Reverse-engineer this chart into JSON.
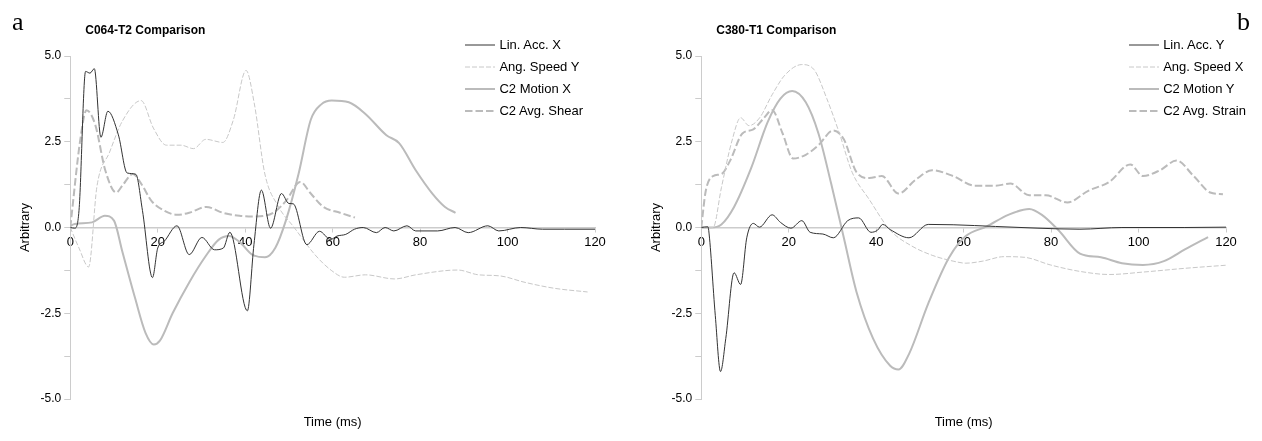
{
  "chart_data": [
    {
      "type": "line",
      "title": "C064-T2 Comparison",
      "xlabel": "Time (ms)",
      "ylabel": "Arbitrary",
      "annotations": [
        "a"
      ],
      "xlim": [
        0,
        120
      ],
      "xticks": [
        0,
        20,
        40,
        60,
        80,
        100,
        120
      ],
      "ylim": [
        -5,
        5
      ],
      "yticks": [
        {
          "value": -5,
          "label": "-5.0"
        },
        {
          "value": -3.75,
          "label": null
        },
        {
          "value": -2.5,
          "label": "-2.5"
        },
        {
          "value": -1.25,
          "label": null
        },
        {
          "value": 0,
          "label": "0.0"
        },
        {
          "value": 1.25,
          "label": null
        },
        {
          "value": 2.5,
          "label": "2.5"
        },
        {
          "value": 3.75,
          "label": null
        },
        {
          "value": 5,
          "label": "5.0"
        }
      ],
      "grid": false,
      "legend": "top right",
      "marker": "none",
      "series": [
        {
          "name": "Lin. Acc. X",
          "color": "#333333",
          "line_style": "solid",
          "x": [
            0,
            1,
            2,
            3.5,
            4.5,
            5.5,
            7,
            8.6,
            11,
            13,
            15,
            16.5,
            18.8,
            20,
            21.5,
            24.4,
            27.2,
            30.1,
            33,
            35,
            36.5,
            40.5,
            42,
            43.7,
            45.8,
            48.3,
            50,
            51,
            54.1,
            57,
            59.5,
            61,
            63,
            65,
            67,
            70,
            72,
            74,
            77,
            79,
            84,
            88,
            91,
            95.5,
            98,
            103,
            108,
            113,
            120
          ],
          "values": [
            0,
            -0.02,
            0.5,
            4.55,
            4.5,
            4.63,
            2.63,
            3.39,
            2.7,
            1.59,
            1.55,
            0.5,
            -1.46,
            -0.6,
            -0.4,
            0.05,
            -0.79,
            -0.29,
            -0.65,
            -0.6,
            -0.14,
            -2.43,
            -0.5,
            1.09,
            -0.02,
            0.99,
            0.7,
            0.69,
            -0.5,
            -0.11,
            -0.35,
            -0.25,
            -0.2,
            -0.05,
            0,
            -0.15,
            0,
            -0.1,
            0.05,
            -0.1,
            -0.1,
            0,
            -0.15,
            0.05,
            -0.1,
            0,
            -0.05,
            -0.05,
            -0.05
          ]
        },
        {
          "name": "Ang. Speed Y",
          "color": "#c8c8c8",
          "line_style": "dashed",
          "x": [
            0,
            2,
            4.2,
            6.1,
            9,
            11.9,
            16.2,
            19,
            22,
            25.3,
            28.2,
            31,
            34.9,
            37.3,
            40.2,
            42.1,
            44.5,
            47.4,
            51.2,
            56,
            59.8,
            62.7,
            67.5,
            74.2,
            79,
            88.6,
            93.4,
            98.2,
            104,
            110.6,
            118.3
          ],
          "values": [
            0,
            -0.6,
            -1.15,
            1.2,
            2.2,
            3.1,
            3.7,
            2.9,
            2.4,
            2.4,
            2.3,
            2.57,
            2.48,
            3.14,
            4.58,
            3.6,
            1.56,
            0.65,
            0,
            -0.8,
            -1.26,
            -1.45,
            -1.38,
            -1.5,
            -1.38,
            -1.24,
            -1.38,
            -1.41,
            -1.6,
            -1.77,
            -1.88
          ]
        },
        {
          "name": "C2 Motion X",
          "color": "#bbbbbb",
          "line_style": "solid",
          "x": [
            0,
            1,
            5,
            7.9,
            10,
            11.9,
            14.8,
            17.2,
            19.1,
            20.5,
            23.4,
            27.2,
            31.1,
            33.9,
            36.3,
            38.7,
            41.6,
            44.5,
            46.9,
            49.3,
            52.2,
            55,
            57.4,
            59.8,
            63.7,
            67.5,
            72.3,
            75.2,
            79,
            82.8,
            85.7,
            88.1
          ],
          "values": [
            0.05,
            0.1,
            0.15,
            0.34,
            0.2,
            -0.7,
            -2.05,
            -3.07,
            -3.41,
            -3.3,
            -2.5,
            -1.6,
            -0.81,
            -0.36,
            -0.25,
            -0.42,
            -0.79,
            -0.87,
            -0.59,
            0.2,
            1.56,
            3.14,
            3.59,
            3.7,
            3.65,
            3.31,
            2.69,
            2.46,
            1.67,
            0.99,
            0.6,
            0.43
          ]
        },
        {
          "name": "C2 Avg. Shear",
          "color": "#bbbbbb",
          "line_style": "dashed",
          "x": [
            0,
            2.3,
            3.7,
            5.7,
            8,
            10.5,
            11.9,
            14.3,
            16.2,
            18.6,
            21.5,
            24.4,
            27.2,
            31.1,
            34.9,
            38.7,
            42.6,
            46.4,
            49.3,
            52.6,
            55,
            57.9,
            61.7,
            65.1
          ],
          "values": [
            0,
            2.57,
            3.42,
            3,
            1.67,
            1.02,
            1.22,
            1.56,
            1.28,
            0.77,
            0.49,
            0.37,
            0.43,
            0.6,
            0.43,
            0.34,
            0.32,
            0.43,
            0.77,
            1.33,
            0.99,
            0.6,
            0.43,
            0.29
          ]
        }
      ]
    },
    {
      "type": "line",
      "title": "C380-T1 Comparison",
      "xlabel": "Time (ms)",
      "ylabel": "Arbitrary",
      "annotations": [
        "b"
      ],
      "xlim": [
        0,
        120
      ],
      "xticks": [
        0,
        20,
        40,
        60,
        80,
        100,
        120
      ],
      "ylim": [
        -5,
        5
      ],
      "yticks": [
        {
          "value": -5,
          "label": "-5.0"
        },
        {
          "value": -3.75,
          "label": null
        },
        {
          "value": -2.5,
          "label": "-2.5"
        },
        {
          "value": -1.25,
          "label": null
        },
        {
          "value": 0,
          "label": "0.0"
        },
        {
          "value": 1.25,
          "label": null
        },
        {
          "value": 2.5,
          "label": "2.5"
        },
        {
          "value": 3.75,
          "label": null
        },
        {
          "value": 5,
          "label": "5.0"
        }
      ],
      "grid": false,
      "legend": "top right",
      "marker": "none",
      "series": [
        {
          "name": "Lin. Acc. Y",
          "color": "#333333",
          "line_style": "solid",
          "x": [
            0,
            1.5,
            1.7,
            3.2,
            4.4,
            5.6,
            7.5,
            9,
            10.4,
            11.9,
            13.3,
            16.2,
            18.1,
            20.5,
            23,
            24.9,
            27.8,
            30.2,
            33.5,
            36,
            38.8,
            40.3,
            41.5,
            43.2,
            47.5,
            51.9,
            57.6,
            67.3,
            77,
            86.6,
            96.2,
            110.6,
            120
          ],
          "values": [
            0,
            0.02,
            -0.08,
            -2.56,
            -4.2,
            -3.24,
            -1.32,
            -1.66,
            -0.3,
            0.12,
            0.01,
            0.37,
            0.15,
            -0.02,
            0.2,
            -0.14,
            -0.19,
            -0.3,
            0.2,
            0.28,
            -0.14,
            -0.08,
            0.09,
            -0.06,
            -0.3,
            0.09,
            0.08,
            0.03,
            -0.02,
            -0.05,
            0,
            0,
            0.01
          ]
        },
        {
          "name": "Ang. Speed X",
          "color": "#c8c8c8",
          "line_style": "dashed",
          "x": [
            0,
            2.7,
            4.6,
            7,
            9,
            10.9,
            13.3,
            16.2,
            19.1,
            23,
            25.8,
            28.7,
            31.6,
            34.5,
            38.4,
            43.2,
            48,
            52.8,
            57.6,
            60.5,
            64.4,
            69.2,
            74,
            79.8,
            86.6,
            93.3,
            101,
            110.6,
            120
          ],
          "values": [
            0,
            0,
            1.16,
            2.52,
            3.2,
            2.97,
            3.19,
            3.87,
            4.44,
            4.75,
            4.6,
            3.76,
            2.74,
            1.61,
            0.82,
            -0.08,
            -0.53,
            -0.81,
            -0.98,
            -1.04,
            -0.98,
            -0.85,
            -0.87,
            -1.09,
            -1.28,
            -1.37,
            -1.3,
            -1.19,
            -1.1
          ]
        },
        {
          "name": "C2 Motion Y",
          "color": "#bbbbbb",
          "line_style": "solid",
          "x": [
            0,
            2.2,
            4.6,
            7.5,
            11.4,
            15.2,
            18.1,
            20.8,
            23.9,
            26.8,
            29.7,
            32.6,
            35.5,
            39.3,
            43.2,
            45.1,
            47.5,
            51.9,
            56.7,
            60.5,
            65.3,
            70.2,
            75,
            77.9,
            81.7,
            86.6,
            91.4,
            96.2,
            101,
            105.8,
            110.6,
            115.9
          ],
          "values": [
            0,
            0,
            0.09,
            0.6,
            1.73,
            3.08,
            3.76,
            3.98,
            3.65,
            2.74,
            1.28,
            -0.3,
            -1.88,
            -3.24,
            -4.03,
            -4.14,
            -3.69,
            -2.22,
            -0.87,
            -0.25,
            0.03,
            0.37,
            0.54,
            0.37,
            -0.08,
            -0.76,
            -0.87,
            -1.04,
            -1.09,
            -0.98,
            -0.64,
            -0.28
          ]
        },
        {
          "name": "C2 Avg. Strain",
          "color": "#bbbbbb",
          "line_style": "dashed",
          "x": [
            0,
            1,
            2.7,
            4.6,
            6.6,
            9.4,
            11.9,
            14.3,
            16.2,
            18.6,
            21,
            23.9,
            26.8,
            30.2,
            32.6,
            35.5,
            38.4,
            41.3,
            45.1,
            49,
            52.8,
            57.6,
            62.5,
            67.3,
            70.7,
            75,
            78.8,
            83.7,
            88.5,
            93.3,
            98.1,
            101,
            104.9,
            108.7,
            112.6,
            116.4,
            119.3
          ],
          "values": [
            0,
            1.05,
            1.5,
            1.56,
            1.95,
            2.74,
            2.86,
            3.19,
            3.42,
            2.74,
            2.01,
            2.12,
            2.4,
            2.83,
            2.57,
            1.61,
            1.44,
            1.5,
            0.99,
            1.39,
            1.67,
            1.5,
            1.22,
            1.22,
            1.28,
            0.94,
            0.94,
            0.73,
            1.07,
            1.33,
            1.84,
            1.5,
            1.67,
            1.95,
            1.5,
            1.02,
            0.97
          ]
        }
      ]
    }
  ]
}
